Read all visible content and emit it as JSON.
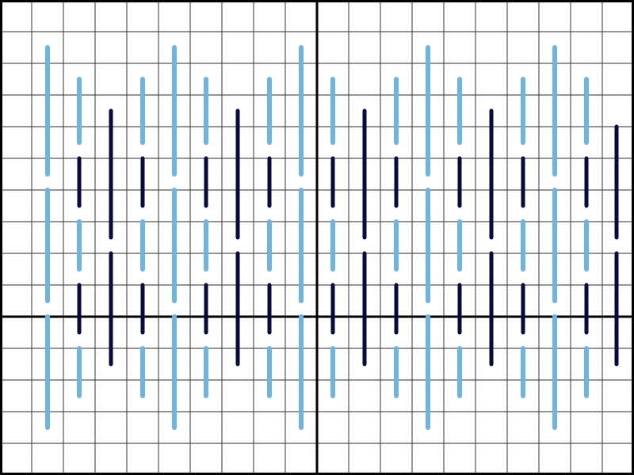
{
  "diagram_data": {
    "type": "grid-segments",
    "grid": {
      "x_range": [
        -10,
        10
      ],
      "y_range": [
        -5,
        10
      ],
      "step": 1,
      "axes_visible": true
    },
    "colors": {
      "light": "#6cb4e4",
      "dark": "#050a40",
      "grid": "#555555",
      "axes": "#000000",
      "background": "#ffffff"
    },
    "groups": [
      {
        "style": "pattern-a",
        "x": [
          -8.5,
          -4.5,
          -0.5,
          3.5,
          7.5
        ],
        "segments": [
          {
            "color": "light",
            "y": [
              8.5,
              4.5
            ]
          },
          {
            "color": "light",
            "y": [
              4,
              0.5
            ]
          },
          {
            "color": "light",
            "y": [
              0,
              -3.5
            ]
          }
        ]
      },
      {
        "style": "pattern-b",
        "x": [
          -7.5,
          -5.5,
          -3.5,
          -1.5,
          0.5,
          2.5,
          4.5,
          6.5,
          8.5
        ],
        "segments": [
          {
            "color": "light",
            "y": [
              7.5,
              5.5
            ]
          },
          {
            "color": "dark",
            "y": [
              5,
              3.5
            ]
          },
          {
            "color": "light",
            "y": [
              3,
              1.5
            ]
          },
          {
            "color": "dark",
            "y": [
              1,
              -0.5
            ]
          },
          {
            "color": "light",
            "y": [
              -1,
              -2.5
            ]
          }
        ]
      },
      {
        "style": "pattern-c",
        "x": [
          -6.5,
          -2.5,
          1.5,
          5.5
        ],
        "segments": [
          {
            "color": "dark",
            "y": [
              6.5,
              2.5
            ]
          },
          {
            "color": "dark",
            "y": [
              2,
              -1.5
            ]
          }
        ]
      },
      {
        "style": "pattern-c-short",
        "x": [
          9.45
        ],
        "segments": [
          {
            "color": "dark",
            "y": [
              6,
              2.5
            ]
          },
          {
            "color": "dark",
            "y": [
              2,
              -1.5
            ]
          }
        ]
      }
    ]
  }
}
